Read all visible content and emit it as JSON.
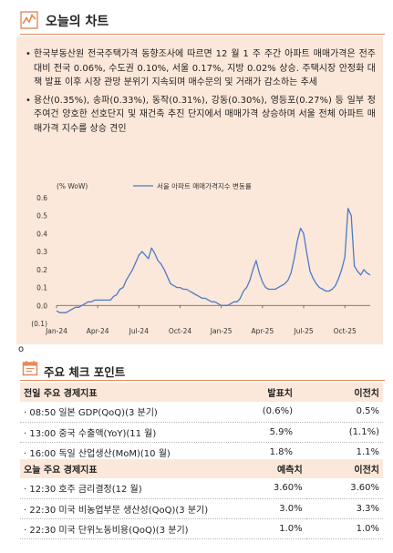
{
  "section1": {
    "title": "오늘의 차트",
    "icon": "line-chart-icon",
    "bullets": [
      "한국부동산원 전국주택가격 동향조사에 따르면 12 월 1 주 주간 아파트 매매가격은 전주대비 전국 0.06%, 수도권 0.10%, 서울 0.17%, 지방 0.02% 상승. 주택시장 안정화 대책 발표 이후 시장 관망 분위기 지속되며 매수문의 및 거래가 감소하는 추세",
      "용산(0.35%), 송파(0.33%), 동작(0.31%), 강동(0.30%), 영등포(0.27%) 등 일부 정주여건 양호한 선호단지 및 재건축 추진 단지에서 매매가격 상승하며 서울 전체 아파트 매매가격 지수를 상승 견인"
    ]
  },
  "chart_data": {
    "type": "line",
    "title": "",
    "ylabel": "(% WoW)",
    "xlabel": "",
    "ylim": [
      -0.1,
      0.6
    ],
    "yticks": [
      "(0.1)",
      "0.0",
      "0.1",
      "0.2",
      "0.3",
      "0.4",
      "0.5",
      "0.6"
    ],
    "ytick_values": [
      -0.1,
      0.0,
      0.1,
      0.2,
      0.3,
      0.4,
      0.5,
      0.6
    ],
    "xticks": [
      "Jan-24",
      "Apr-24",
      "Jul-24",
      "Oct-24",
      "Jan-25",
      "Apr-25",
      "Jul-25",
      "Oct-25"
    ],
    "xtick_index": [
      0,
      13,
      26,
      39,
      52,
      65,
      78,
      91
    ],
    "legend_position": "top-center",
    "color": "#4a7bc8",
    "series": [
      {
        "name": "서울 아파트 매매가격지수 변동률",
        "values": [
          -0.03,
          -0.04,
          -0.04,
          -0.04,
          -0.03,
          -0.02,
          -0.01,
          -0.01,
          0.0,
          0.01,
          0.02,
          0.02,
          0.03,
          0.03,
          0.03,
          0.03,
          0.03,
          0.03,
          0.05,
          0.06,
          0.09,
          0.1,
          0.14,
          0.17,
          0.2,
          0.24,
          0.28,
          0.3,
          0.28,
          0.26,
          0.32,
          0.29,
          0.25,
          0.23,
          0.2,
          0.16,
          0.12,
          0.11,
          0.1,
          0.1,
          0.09,
          0.09,
          0.08,
          0.07,
          0.06,
          0.05,
          0.04,
          0.04,
          0.03,
          0.02,
          0.02,
          0.01,
          0.0,
          0.0,
          0.0,
          0.01,
          0.02,
          0.02,
          0.04,
          0.08,
          0.1,
          0.14,
          0.2,
          0.25,
          0.18,
          0.13,
          0.1,
          0.09,
          0.09,
          0.09,
          0.1,
          0.11,
          0.12,
          0.14,
          0.18,
          0.26,
          0.36,
          0.43,
          0.4,
          0.29,
          0.19,
          0.15,
          0.12,
          0.1,
          0.09,
          0.08,
          0.08,
          0.09,
          0.11,
          0.15,
          0.2,
          0.27,
          0.54,
          0.5,
          0.22,
          0.19,
          0.17,
          0.2,
          0.18,
          0.17
        ]
      }
    ]
  },
  "section2": {
    "title": "주요 체크 포인트",
    "icon": "calendar-icon",
    "tables": [
      {
        "header": [
          "전일 주요 경제지표",
          "발표치",
          "이전치"
        ],
        "rows": [
          [
            "· 08:50 일본 GDP(QoQ)(3 분기)",
            "(0.6%)",
            "0.5%"
          ],
          [
            "· 13:00 중국 수출액(YoY)(11 월)",
            "5.9%",
            "(1.1%)"
          ],
          [
            "· 16:00 독일 산업생산(MoM)(10 월)",
            "1.8%",
            "1.1%"
          ]
        ]
      },
      {
        "header": [
          "오늘 주요 경제지표",
          "예측치",
          "이전치"
        ],
        "rows": [
          [
            "· 12:30 호주 금리결정(12 월)",
            "3.60%",
            "3.60%"
          ],
          [
            "· 22:30 미국 비농업부문 생산성(QoQ)(3 분기)",
            "3.0%",
            "3.3%"
          ],
          [
            "· 22:30 미국 단위노동비용(QoQ)(3 분기)",
            "1.0%",
            "1.0%"
          ]
        ]
      }
    ]
  },
  "separator_glyph": "o"
}
